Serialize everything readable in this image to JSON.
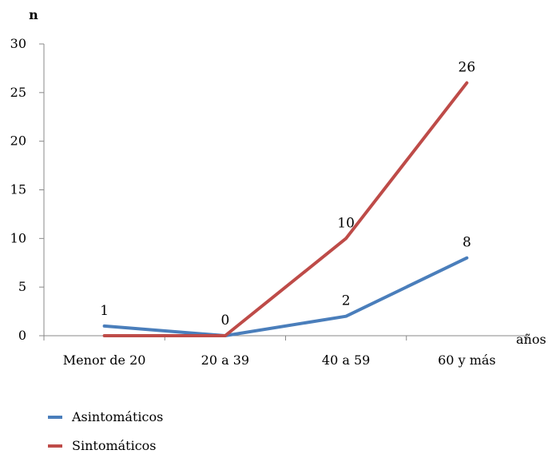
{
  "chart_data": {
    "type": "line",
    "ylabel": "n",
    "xlabel": "años",
    "ylim": [
      0,
      30
    ],
    "yticks": [
      0,
      5,
      10,
      15,
      20,
      25,
      30
    ],
    "categories": [
      "Menor de 20",
      "20 a 39",
      "40 a 59",
      "60 y más"
    ],
    "grid": false,
    "legend_position": "bottom-left",
    "series": [
      {
        "name": "Asintomáticos",
        "color": "#4a7ebb",
        "values": [
          1,
          0,
          2,
          8
        ],
        "labels": [
          "1",
          "",
          "2",
          "8"
        ]
      },
      {
        "name": "Sintomáticos",
        "color": "#be4b48",
        "values": [
          0,
          0,
          10,
          26
        ],
        "labels": [
          "",
          "0",
          "10",
          "26"
        ]
      }
    ]
  }
}
